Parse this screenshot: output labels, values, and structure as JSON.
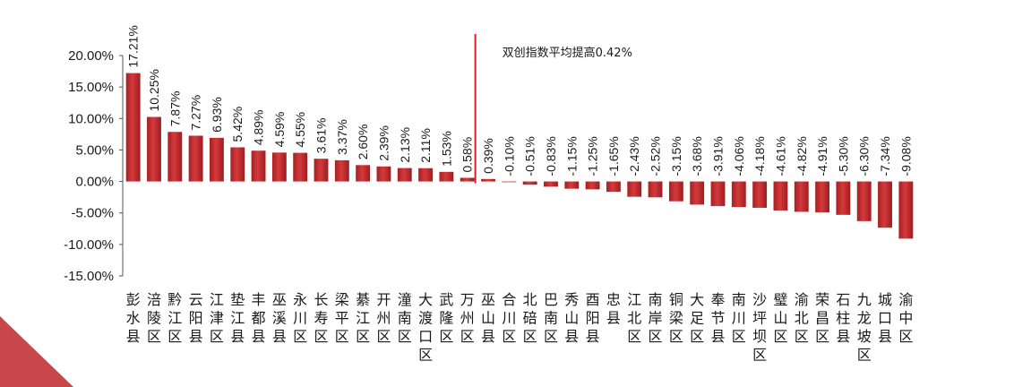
{
  "chart_data": {
    "type": "bar",
    "categories": [
      "彭水县",
      "涪陵区",
      "黔江区",
      "云阳县",
      "江津区",
      "垫江县",
      "丰都县",
      "巫溪县",
      "永川区",
      "长寿区",
      "梁平区",
      "綦江区",
      "开州区",
      "潼南区",
      "大渡口区",
      "武隆区",
      "万州区",
      "巫山县",
      "合川区",
      "北碚区",
      "巴南区",
      "秀山县",
      "酉阳县",
      "忠县",
      "江北区",
      "南岸区",
      "铜梁区",
      "大足区",
      "奉节县",
      "南川区",
      "沙坪坝区",
      "璧山区",
      "渝北区",
      "荣昌区",
      "石柱县",
      "九龙坡区",
      "城口县",
      "渝中区"
    ],
    "values": [
      17.21,
      10.25,
      7.87,
      7.27,
      6.93,
      5.42,
      4.89,
      4.59,
      4.55,
      3.61,
      3.37,
      2.6,
      2.39,
      2.13,
      2.11,
      1.53,
      0.58,
      0.39,
      -0.1,
      -0.51,
      -0.83,
      -1.15,
      -1.25,
      -1.65,
      -2.43,
      -2.52,
      -3.15,
      -3.68,
      -3.91,
      -4.06,
      -4.18,
      -4.61,
      -4.82,
      -4.91,
      -5.3,
      -6.3,
      -7.34,
      -9.08
    ],
    "value_labels": [
      "17.21%",
      "10.25%",
      "7.87%",
      "7.27%",
      "6.93%",
      "5.42%",
      "4.89%",
      "4.59%",
      "4.55%",
      "3.61%",
      "3.37%",
      "2.60%",
      "2.39%",
      "2.13%",
      "2.11%",
      "1.53%",
      "0.58%",
      "0.39%",
      "-0.10%",
      "-0.51%",
      "-0.83%",
      "-1.15%",
      "-1.25%",
      "-1.65%",
      "-2.43%",
      "-2.52%",
      "-3.15%",
      "-3.68%",
      "-3.91%",
      "-4.06%",
      "-4.18%",
      "-4.61%",
      "-4.82%",
      "-4.91%",
      "-5.30%",
      "-6.30%",
      "-7.34%",
      "-9.08%"
    ],
    "y_ticks": [
      "20.00%",
      "15.00%",
      "10.00%",
      "5.00%",
      "0.00%",
      "-5.00%",
      "-10.00%",
      "-15.00%"
    ],
    "ylim": [
      -15,
      20
    ],
    "annotation": {
      "text": "双创指数平均提高0.42%",
      "after_category_index": 16
    },
    "grid": false,
    "bar_color": "#c0282b",
    "marker_color": "#e02020"
  },
  "decor": {
    "corner_color": "#c8474a"
  }
}
